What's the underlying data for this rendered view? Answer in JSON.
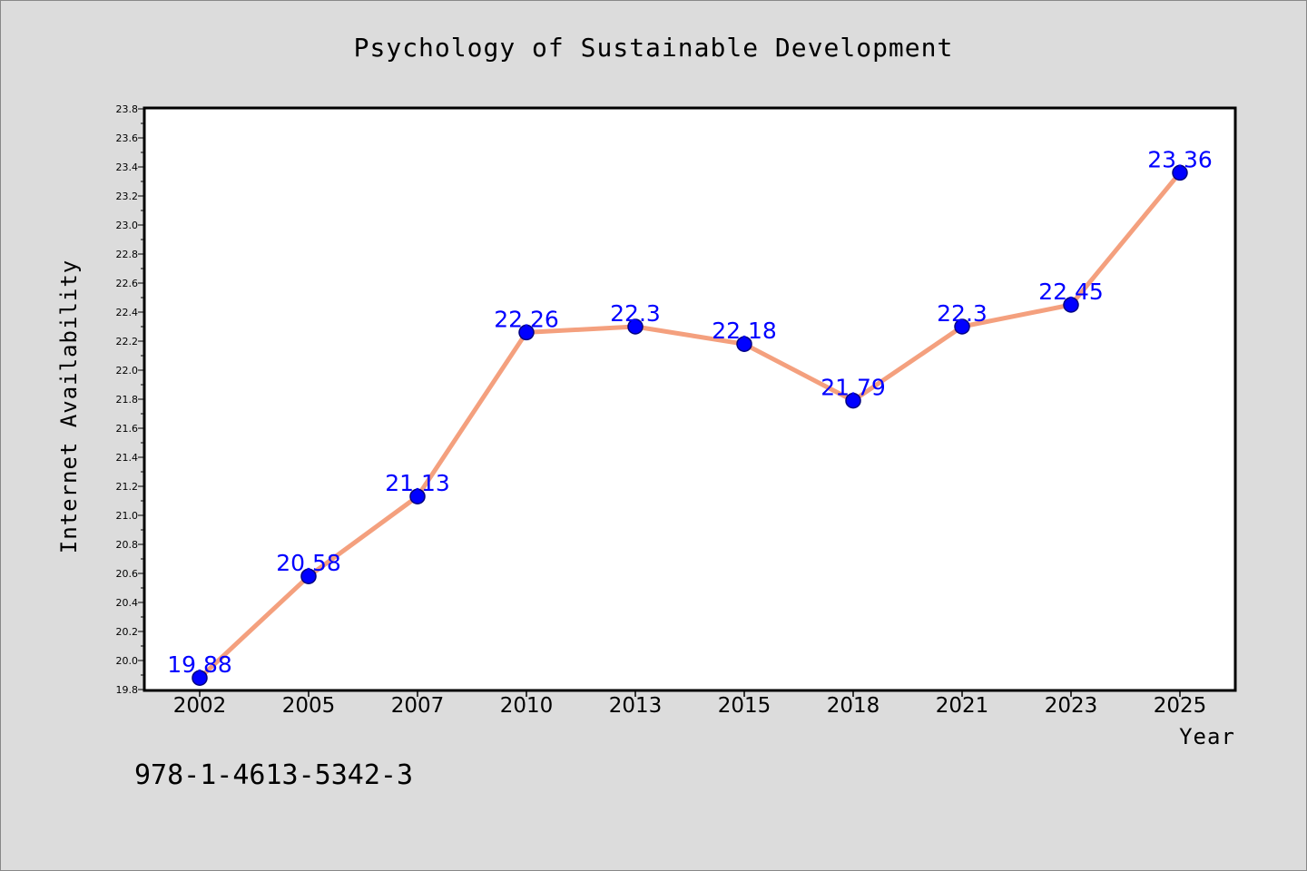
{
  "chart_data": {
    "type": "line",
    "title": "Psychology of Sustainable Development",
    "xlabel": "Year",
    "ylabel": "Internet Availability",
    "categories": [
      "2002",
      "2005",
      "2007",
      "2010",
      "2013",
      "2015",
      "2018",
      "2021",
      "2023",
      "2025"
    ],
    "series": [
      {
        "values": [
          19.88,
          20.58,
          21.13,
          22.26,
          22.3,
          22.18,
          21.79,
          22.3,
          22.45,
          23.36
        ]
      }
    ],
    "data_labels": [
      "19.88",
      "20.58",
      "21.13",
      "22.26",
      "22.3",
      "22.18",
      "21.79",
      "22.3",
      "22.45",
      "23.36"
    ],
    "ylim": [
      19.8,
      23.8
    ],
    "yticks": [
      "19.8",
      "20.0",
      "20.2",
      "20.4",
      "20.6",
      "20.8",
      "21.0",
      "21.2",
      "21.4",
      "21.6",
      "21.8",
      "22.0",
      "22.2",
      "22.4",
      "22.6",
      "22.8",
      "23.0",
      "23.2",
      "23.4",
      "23.6",
      "23.8"
    ],
    "grid": false,
    "legend": "none",
    "colors": {
      "line": "#f4a07e",
      "marker": "#0000ff",
      "marker_edge": "#000080",
      "data_label": "#0000ff",
      "background": "#dcdcdc",
      "plot_background": "#ffffff"
    }
  },
  "annotation": {
    "text": "978-1-4613-5342-3"
  }
}
